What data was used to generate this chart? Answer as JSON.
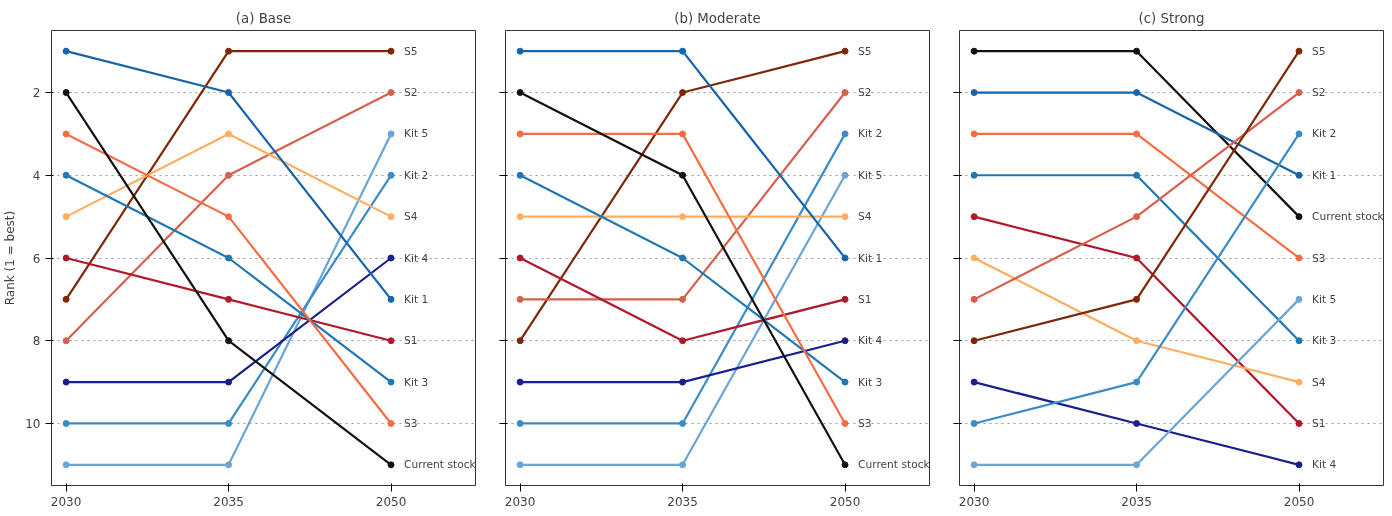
{
  "chart_data": [
    {
      "type": "line",
      "title": "(a) Base",
      "ylabel": "Rank (1 = best)",
      "categories": [
        "2030",
        "2035",
        "2050"
      ],
      "ylim": [
        11.5,
        0.5
      ],
      "yticks": [
        2,
        4,
        6,
        8,
        10
      ],
      "grid": "y",
      "marker": "circle",
      "line_style": "solid",
      "series": [
        {
          "name": "S5",
          "color": "#7f2704",
          "values": [
            7,
            1,
            1
          ]
        },
        {
          "name": "S2",
          "color": "#d6604d",
          "values": [
            8,
            4,
            2
          ]
        },
        {
          "name": "Kit 5",
          "color": "#6aa5d4",
          "values": [
            11,
            11,
            3
          ]
        },
        {
          "name": "Kit 2",
          "color": "#3a8bc6",
          "values": [
            10,
            10,
            4
          ]
        },
        {
          "name": "S4",
          "color": "#fdae61",
          "values": [
            5,
            3,
            5
          ]
        },
        {
          "name": "Kit 4",
          "color": "#1a1f8f",
          "values": [
            9,
            9,
            6
          ]
        },
        {
          "name": "Kit 1",
          "color": "#1764ab",
          "values": [
            1,
            2,
            7
          ]
        },
        {
          "name": "S1",
          "color": "#b2182b",
          "values": [
            6,
            7,
            8
          ]
        },
        {
          "name": "Kit 3",
          "color": "#1f77b4",
          "values": [
            4,
            6,
            9
          ]
        },
        {
          "name": "S3",
          "color": "#f46d43",
          "values": [
            3,
            5,
            10
          ]
        },
        {
          "name": "Current stock",
          "color": "#111111",
          "values": [
            2,
            8,
            11
          ]
        }
      ]
    },
    {
      "type": "line",
      "title": "(b) Moderate",
      "categories": [
        "2030",
        "2035",
        "2050"
      ],
      "ylim": [
        11.5,
        0.5
      ],
      "yticks": [
        2,
        4,
        6,
        8,
        10
      ],
      "grid": "y",
      "marker": "circle",
      "line_style": "solid",
      "tick_labels": "x",
      "series": [
        {
          "name": "S5",
          "color": "#7f2704",
          "values": [
            8,
            2,
            1
          ]
        },
        {
          "name": "S2",
          "color": "#d6604d",
          "values": [
            7,
            7,
            2
          ]
        },
        {
          "name": "Kit 2",
          "color": "#3a8bc6",
          "values": [
            10,
            10,
            3
          ]
        },
        {
          "name": "Kit 5",
          "color": "#6aa5d4",
          "values": [
            11,
            11,
            4
          ]
        },
        {
          "name": "S4",
          "color": "#fdae61",
          "values": [
            5,
            5,
            5
          ]
        },
        {
          "name": "Kit 1",
          "color": "#1764ab",
          "values": [
            1,
            1,
            6
          ]
        },
        {
          "name": "S1",
          "color": "#b2182b",
          "values": [
            6,
            8,
            7
          ]
        },
        {
          "name": "Kit 4",
          "color": "#1a1f8f",
          "values": [
            9,
            9,
            8
          ]
        },
        {
          "name": "Kit 3",
          "color": "#1f77b4",
          "values": [
            4,
            6,
            9
          ]
        },
        {
          "name": "S3",
          "color": "#f46d43",
          "values": [
            3,
            3,
            10
          ]
        },
        {
          "name": "Current stock",
          "color": "#111111",
          "values": [
            2,
            4,
            11
          ]
        }
      ]
    },
    {
      "type": "line",
      "title": "(c) Strong",
      "categories": [
        "2030",
        "2035",
        "2050"
      ],
      "ylim": [
        11.5,
        0.5
      ],
      "yticks": [
        2,
        4,
        6,
        8,
        10
      ],
      "grid": "y",
      "marker": "circle",
      "line_style": "solid",
      "tick_labels": "x",
      "series": [
        {
          "name": "Current stock",
          "color": "#111111",
          "values": [
            1,
            1,
            5
          ]
        },
        {
          "name": "Kit 1",
          "color": "#1764ab",
          "values": [
            2,
            2,
            4
          ]
        },
        {
          "name": "S3",
          "color": "#f46d43",
          "values": [
            3,
            3,
            6
          ]
        },
        {
          "name": "Kit 3",
          "color": "#1f77b4",
          "values": [
            4,
            4,
            8
          ]
        },
        {
          "name": "S1",
          "color": "#b2182b",
          "values": [
            5,
            6,
            10
          ]
        },
        {
          "name": "S4",
          "color": "#fdae61",
          "values": [
            6,
            8,
            9
          ]
        },
        {
          "name": "S2",
          "color": "#d6604d",
          "values": [
            7,
            5,
            2
          ]
        },
        {
          "name": "S5",
          "color": "#7f2704",
          "values": [
            8,
            7,
            1
          ]
        },
        {
          "name": "Kit 4",
          "color": "#1a1f8f",
          "values": [
            9,
            10,
            11
          ]
        },
        {
          "name": "Kit 2",
          "color": "#3a8bc6",
          "values": [
            10,
            9,
            3
          ]
        },
        {
          "name": "Kit 5",
          "color": "#6aa5d4",
          "values": [
            11,
            11,
            7
          ]
        }
      ]
    }
  ]
}
